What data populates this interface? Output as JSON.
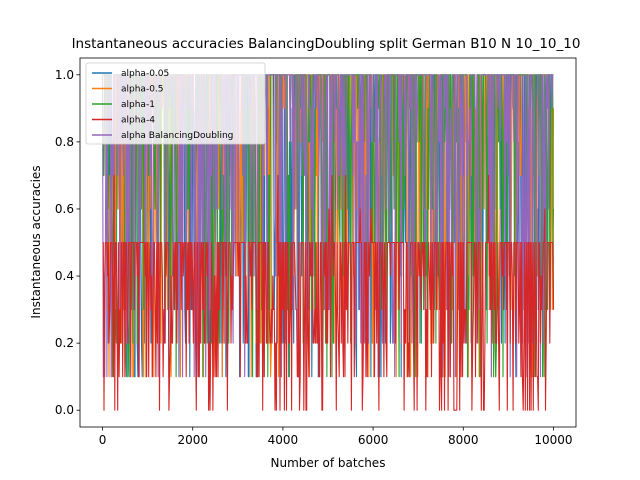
{
  "chart_data": {
    "type": "line",
    "title": "Instantaneous accuracies BalancingDoubling split German B10 N 10_10_10",
    "xlabel": "Number of batches",
    "ylabel": "Instantaneous accuracies",
    "xlim": [
      -500,
      10500
    ],
    "ylim": [
      -0.05,
      1.05
    ],
    "xticks": [
      0,
      2000,
      4000,
      6000,
      8000,
      10000
    ],
    "xtick_labels": [
      "0",
      "2000",
      "4000",
      "6000",
      "8000",
      "10000"
    ],
    "yticks": [
      0.0,
      0.2,
      0.4,
      0.6,
      0.8,
      1.0
    ],
    "ytick_labels": [
      "0.0",
      "0.2",
      "0.4",
      "0.6",
      "0.8",
      "1.0"
    ],
    "grid": false,
    "legend_position": "upper-left",
    "x_range": [
      0,
      10000
    ],
    "series": [
      {
        "name": "alpha-0.05",
        "color": "#1f77b4",
        "typical_range": [
          0.1,
          1.0
        ]
      },
      {
        "name": "alpha-0.5",
        "color": "#ff7f0e",
        "typical_range": [
          0.1,
          1.0
        ]
      },
      {
        "name": "alpha-1",
        "color": "#2ca02c",
        "typical_range": [
          0.1,
          1.0
        ]
      },
      {
        "name": "alpha-4",
        "color": "#d62728",
        "typical_range": [
          0.0,
          0.5
        ]
      },
      {
        "name": "alpha BalancingDoubling",
        "color": "#9467bd",
        "typical_range": [
          0.1,
          1.0
        ]
      }
    ]
  }
}
